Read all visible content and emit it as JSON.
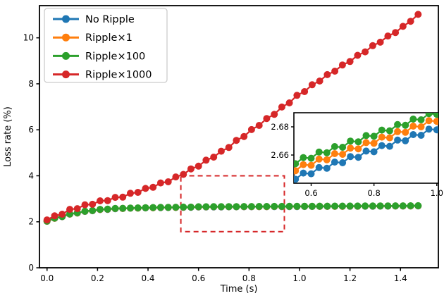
{
  "figure": {
    "background": "#ffffff"
  },
  "chart_data": {
    "type": "line",
    "title": "",
    "xlabel": "Time (s)",
    "ylabel": "Loss rate (%)",
    "xlim": [
      -0.03,
      1.55
    ],
    "ylim": [
      0,
      11.4
    ],
    "grid": false,
    "legend_position": "upper left",
    "xticks": [
      {
        "value": 0.0,
        "label": "0.0"
      },
      {
        "value": 0.2,
        "label": "0.2"
      },
      {
        "value": 0.4,
        "label": "0.4"
      },
      {
        "value": 0.6,
        "label": "0.6"
      },
      {
        "value": 0.8,
        "label": "0.8"
      },
      {
        "value": 1.0,
        "label": "1.0"
      },
      {
        "value": 1.2,
        "label": "1.2"
      },
      {
        "value": 1.4,
        "label": "1.4"
      }
    ],
    "yticks": [
      {
        "value": 0,
        "label": "0"
      },
      {
        "value": 2,
        "label": "2"
      },
      {
        "value": 4,
        "label": "4"
      },
      {
        "value": 6,
        "label": "6"
      },
      {
        "value": 8,
        "label": "8"
      },
      {
        "value": 10,
        "label": "10"
      }
    ],
    "x": [
      0,
      0.03,
      0.06,
      0.09,
      0.12,
      0.15,
      0.18,
      0.21,
      0.24,
      0.27,
      0.3,
      0.33,
      0.36,
      0.39,
      0.42,
      0.45,
      0.48,
      0.51,
      0.54,
      0.57,
      0.6,
      0.63,
      0.66,
      0.69,
      0.72,
      0.75,
      0.78,
      0.81,
      0.84,
      0.87,
      0.9,
      0.93,
      0.96,
      0.99,
      1.02,
      1.05,
      1.08,
      1.11,
      1.14,
      1.17,
      1.2,
      1.23,
      1.26,
      1.29,
      1.32,
      1.35,
      1.38,
      1.41,
      1.44,
      1.47
    ],
    "series": [
      {
        "id": "no-ripple",
        "name": "No Ripple",
        "color": "#1f77b4",
        "values": [
          2.018,
          2.148,
          2.218,
          2.328,
          2.378,
          2.448,
          2.478,
          2.528,
          2.538,
          2.568,
          2.573,
          2.588,
          2.593,
          2.603,
          2.608,
          2.613,
          2.618,
          2.62,
          2.626,
          2.628,
          2.643,
          2.642,
          2.646,
          2.645,
          2.649,
          2.648,
          2.652,
          2.651,
          2.655,
          2.654,
          2.658,
          2.657,
          2.661,
          2.66,
          2.664,
          2.663,
          2.667,
          2.666,
          2.67,
          2.669,
          2.673,
          2.672,
          2.676,
          2.675,
          2.679,
          2.678,
          2.682,
          2.681,
          2.685,
          2.688
        ]
      },
      {
        "id": "ripple-x1",
        "name": "Ripple×1",
        "color": "#ff7f0e",
        "values": [
          2.024,
          2.154,
          2.224,
          2.334,
          2.384,
          2.454,
          2.484,
          2.534,
          2.544,
          2.574,
          2.579,
          2.594,
          2.599,
          2.609,
          2.614,
          2.619,
          2.624,
          2.626,
          2.632,
          2.634,
          2.649,
          2.648,
          2.652,
          2.651,
          2.655,
          2.654,
          2.658,
          2.657,
          2.661,
          2.66,
          2.664,
          2.663,
          2.667,
          2.666,
          2.67,
          2.669,
          2.673,
          2.672,
          2.676,
          2.675,
          2.679,
          2.678,
          2.682,
          2.681,
          2.685,
          2.684,
          2.688,
          2.687,
          2.691,
          2.694
        ]
      },
      {
        "id": "ripple-x100",
        "name": "Ripple×100",
        "color": "#2ca02c",
        "values": [
          2.03,
          2.16,
          2.23,
          2.34,
          2.39,
          2.46,
          2.49,
          2.54,
          2.55,
          2.58,
          2.585,
          2.6,
          2.605,
          2.615,
          2.62,
          2.625,
          2.63,
          2.632,
          2.638,
          2.64,
          2.655,
          2.654,
          2.658,
          2.657,
          2.661,
          2.66,
          2.664,
          2.663,
          2.667,
          2.666,
          2.67,
          2.669,
          2.673,
          2.672,
          2.676,
          2.675,
          2.679,
          2.678,
          2.682,
          2.681,
          2.685,
          2.684,
          2.688,
          2.687,
          2.691,
          2.69,
          2.694,
          2.693,
          2.697,
          2.7
        ]
      },
      {
        "id": "ripple-x1000",
        "name": "Ripple×1000",
        "color": "#d62728",
        "values": [
          2.08,
          2.26,
          2.33,
          2.54,
          2.57,
          2.74,
          2.76,
          2.91,
          2.92,
          3.06,
          3.07,
          3.24,
          3.28,
          3.45,
          3.5,
          3.69,
          3.74,
          3.95,
          4.06,
          4.3,
          4.42,
          4.68,
          4.81,
          5.07,
          5.23,
          5.54,
          5.71,
          6.01,
          6.19,
          6.49,
          6.67,
          6.99,
          7.17,
          7.5,
          7.66,
          7.96,
          8.12,
          8.4,
          8.55,
          8.82,
          8.97,
          9.24,
          9.39,
          9.66,
          9.81,
          10.08,
          10.23,
          10.5,
          10.72,
          11.02
        ]
      }
    ],
    "legend": {
      "entries": [
        {
          "id": "no-ripple",
          "label": "No Ripple",
          "color": "#1f77b4"
        },
        {
          "id": "ripple-x1",
          "label": "Ripple×1",
          "color": "#ff7f0e"
        },
        {
          "id": "ripple-x100",
          "label": "Ripple×100",
          "color": "#2ca02c"
        },
        {
          "id": "ripple-x1000",
          "label": "Ripple×1000",
          "color": "#d62728"
        }
      ]
    },
    "zoom_rect": {
      "x0": 0.53,
      "x1": 0.94,
      "y0": 1.57,
      "y1": 4.0,
      "color": "#d62728",
      "style": "dashed"
    },
    "inset": {
      "xlim": [
        0.545,
        1.005
      ],
      "ylim": [
        2.64,
        2.69
      ],
      "xticks": [
        {
          "value": 0.6,
          "label": "0.6"
        },
        {
          "value": 0.8,
          "label": "0.8"
        },
        {
          "value": 1.0,
          "label": "1.0"
        }
      ],
      "yticks": [
        {
          "value": 2.66,
          "label": "2.66"
        },
        {
          "value": 2.68,
          "label": "2.68"
        }
      ],
      "x": [
        0.55,
        0.575,
        0.6,
        0.625,
        0.65,
        0.675,
        0.7,
        0.725,
        0.75,
        0.775,
        0.8,
        0.825,
        0.85,
        0.875,
        0.9,
        0.925,
        0.95,
        0.975,
        1.0
      ],
      "series": [
        {
          "id": "no-ripple",
          "color": "#1f77b4",
          "values": [
            2.6428,
            2.6472,
            2.6467,
            2.6511,
            2.6506,
            2.655,
            2.6545,
            2.6589,
            2.6584,
            2.6628,
            2.6623,
            2.6667,
            2.6662,
            2.6706,
            2.6701,
            2.6745,
            2.674,
            2.6784,
            2.6779
          ]
        },
        {
          "id": "ripple-x1",
          "color": "#ff7f0e",
          "values": [
            2.6488,
            2.6532,
            2.6527,
            2.6571,
            2.6566,
            2.661,
            2.6605,
            2.6649,
            2.6644,
            2.6688,
            2.6683,
            2.6727,
            2.6722,
            2.6766,
            2.6761,
            2.6805,
            2.68,
            2.6844,
            2.6839
          ]
        },
        {
          "id": "ripple-x100",
          "color": "#2ca02c",
          "values": [
            2.6538,
            2.6582,
            2.6577,
            2.6621,
            2.6616,
            2.666,
            2.6655,
            2.6699,
            2.6694,
            2.6738,
            2.6733,
            2.6777,
            2.6772,
            2.6816,
            2.6811,
            2.6855,
            2.685,
            2.6894,
            2.6889
          ]
        }
      ]
    }
  }
}
